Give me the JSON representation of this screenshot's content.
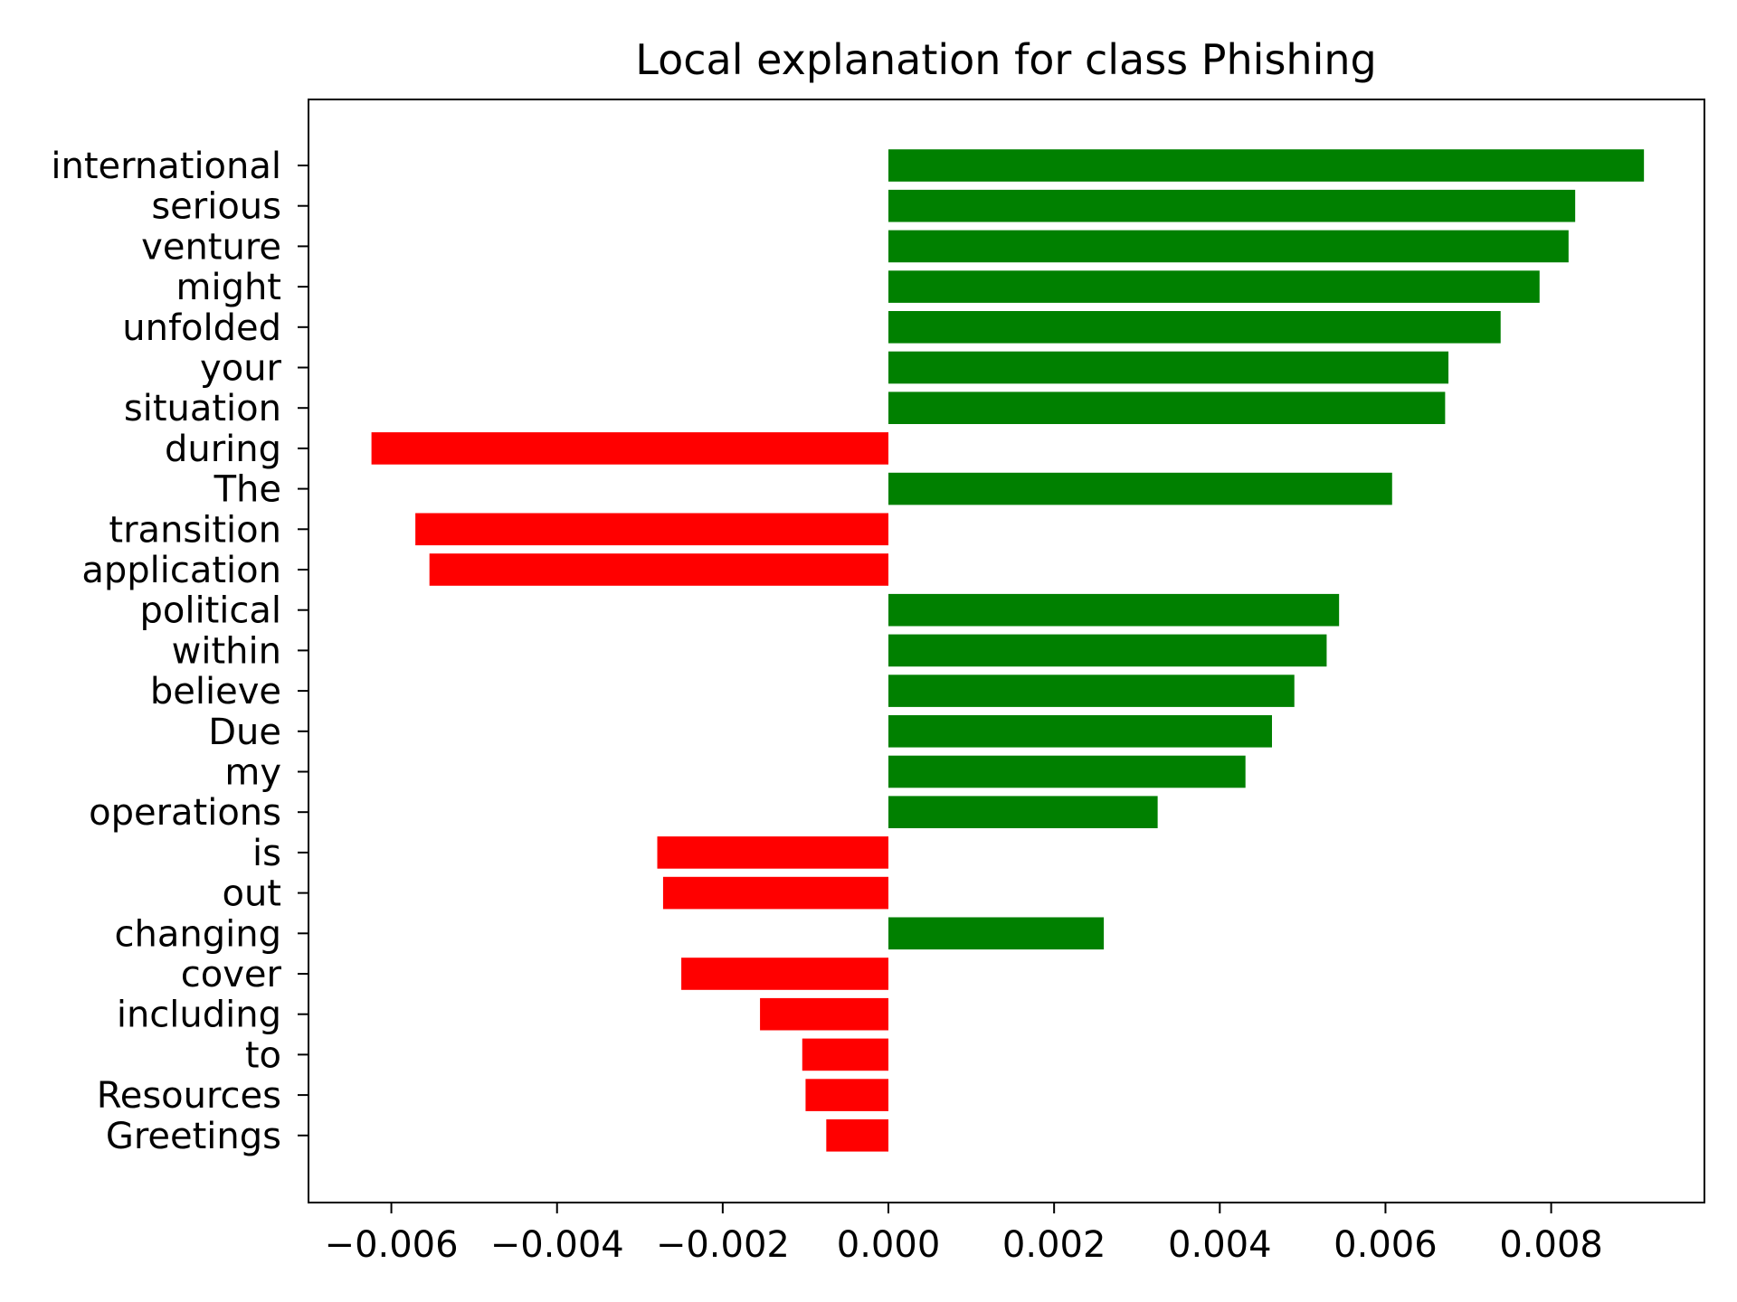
{
  "chart_data": {
    "type": "bar",
    "orientation": "horizontal",
    "title": "Local explanation for class Phishing",
    "xlabel": "",
    "ylabel": "",
    "xlim": [
      -0.007,
      0.00985
    ],
    "grid": false,
    "legend": "none",
    "categories": [
      "international",
      "serious",
      "venture",
      "might",
      "unfolded",
      "your",
      "situation",
      "during",
      "The",
      "transition",
      "application",
      "political",
      "within",
      "believe",
      "Due",
      "my",
      "operations",
      "is",
      "out",
      "changing",
      "cover",
      "including",
      "to",
      "Resources",
      "Greetings"
    ],
    "values": [
      0.00912,
      0.00829,
      0.00821,
      0.00786,
      0.00739,
      0.00676,
      0.00672,
      -0.00624,
      0.00608,
      -0.00571,
      -0.00554,
      0.00544,
      0.00529,
      0.0049,
      0.00463,
      0.00431,
      0.00325,
      -0.00279,
      -0.00272,
      0.0026,
      -0.0025,
      -0.00155,
      -0.00104,
      -0.001,
      -0.00075
    ],
    "x_ticks": [
      -0.006,
      -0.004,
      -0.002,
      0.0,
      0.002,
      0.004,
      0.006,
      0.008
    ],
    "x_tick_labels": [
      "−0.006",
      "−0.004",
      "−0.002",
      "0.000",
      "0.002",
      "0.004",
      "0.006",
      "0.008"
    ],
    "colors": {
      "positive": "#008000",
      "negative": "#ff0000",
      "axis": "#000000"
    }
  }
}
